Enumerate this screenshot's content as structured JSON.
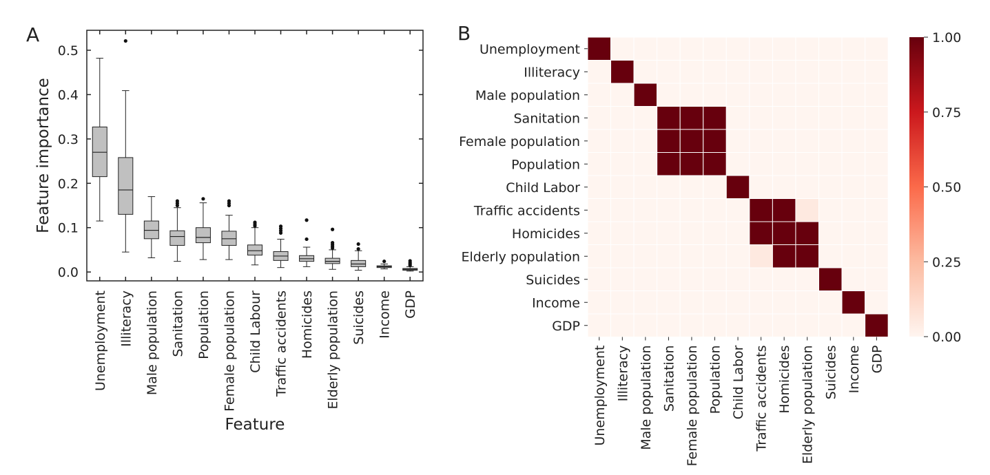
{
  "chart_data": [
    {
      "panel_label": "A",
      "type": "box",
      "xlabel": "Feature",
      "ylabel": "Feature importance",
      "ylim": [
        -0.02,
        0.545
      ],
      "yticks": [
        0.0,
        0.1,
        0.2,
        0.3,
        0.4,
        0.5
      ],
      "ytick_labels": [
        "0.0",
        "0.1",
        "0.2",
        "0.3",
        "0.4",
        "0.5"
      ],
      "grid": false,
      "box_color": "#c0c0c0",
      "categories": [
        "Unemployment",
        "Illiteracy",
        "Male population",
        "Sanitation",
        "Population",
        "Female population",
        "Child Labour",
        "Traffic accidents",
        "Homicides",
        "Elderly population",
        "Suicides",
        "Income",
        "GDP"
      ],
      "boxes": [
        {
          "whislo": 0.115,
          "q1": 0.215,
          "med": 0.27,
          "q3": 0.327,
          "whishi": 0.482,
          "fliers": []
        },
        {
          "whislo": 0.045,
          "q1": 0.13,
          "med": 0.185,
          "q3": 0.258,
          "whishi": 0.409,
          "fliers": [
            0.521
          ]
        },
        {
          "whislo": 0.032,
          "q1": 0.075,
          "med": 0.094,
          "q3": 0.115,
          "whishi": 0.17,
          "fliers": []
        },
        {
          "whislo": 0.024,
          "q1": 0.06,
          "med": 0.08,
          "q3": 0.093,
          "whishi": 0.145,
          "fliers": [
            0.15,
            0.155,
            0.16
          ]
        },
        {
          "whislo": 0.028,
          "q1": 0.066,
          "med": 0.078,
          "q3": 0.1,
          "whishi": 0.156,
          "fliers": [
            0.165
          ]
        },
        {
          "whislo": 0.028,
          "q1": 0.06,
          "med": 0.075,
          "q3": 0.092,
          "whishi": 0.128,
          "fliers": [
            0.15,
            0.155,
            0.16
          ]
        },
        {
          "whislo": 0.016,
          "q1": 0.038,
          "med": 0.048,
          "q3": 0.061,
          "whishi": 0.1,
          "fliers": [
            0.104,
            0.108,
            0.112
          ]
        },
        {
          "whislo": 0.01,
          "q1": 0.026,
          "med": 0.036,
          "q3": 0.046,
          "whishi": 0.074,
          "fliers": [
            0.088,
            0.093,
            0.098,
            0.103
          ]
        },
        {
          "whislo": 0.012,
          "q1": 0.024,
          "med": 0.03,
          "q3": 0.037,
          "whishi": 0.056,
          "fliers": [
            0.074,
            0.117
          ]
        },
        {
          "whislo": 0.006,
          "q1": 0.019,
          "med": 0.024,
          "q3": 0.031,
          "whishi": 0.05,
          "fliers": [
            0.054,
            0.058,
            0.062,
            0.066,
            0.096
          ]
        },
        {
          "whislo": 0.004,
          "q1": 0.012,
          "med": 0.018,
          "q3": 0.026,
          "whishi": 0.048,
          "fliers": [
            0.052,
            0.063
          ]
        },
        {
          "whislo": 0.007,
          "q1": 0.01,
          "med": 0.012,
          "q3": 0.014,
          "whishi": 0.018,
          "fliers": [
            0.024
          ]
        },
        {
          "whislo": 0.002,
          "q1": 0.004,
          "med": 0.006,
          "q3": 0.008,
          "whishi": 0.012,
          "fliers": [
            0.015,
            0.018,
            0.021,
            0.025
          ]
        }
      ]
    },
    {
      "panel_label": "B",
      "type": "heatmap",
      "labels": [
        "Unemployment",
        "Illiteracy",
        "Male population",
        "Sanitation",
        "Female population",
        "Population",
        "Child Labor",
        "Traffic accidents",
        "Homicides",
        "Elderly population",
        "Suicides",
        "Income",
        "GDP"
      ],
      "x_labels": [
        "Unemployment",
        "Illiteracy",
        "Male population",
        "Sanitation",
        "Female population",
        "Population",
        "Child Labor",
        "Traffic accidents",
        "Homicides",
        "Elderly population",
        "Suicides",
        "Income",
        "GDP"
      ],
      "matrix": [
        [
          1,
          0,
          0,
          0,
          0,
          0,
          0,
          0,
          0,
          0,
          0,
          0,
          0
        ],
        [
          0,
          1,
          0,
          0,
          0,
          0,
          0,
          0,
          0,
          0,
          0,
          0,
          0
        ],
        [
          0,
          0,
          1,
          0,
          0,
          0,
          0,
          0,
          0,
          0,
          0,
          0,
          0
        ],
        [
          0,
          0,
          0,
          1,
          1,
          1,
          0,
          0,
          0,
          0,
          0,
          0,
          0
        ],
        [
          0,
          0,
          0,
          1,
          1,
          1,
          0,
          0,
          0,
          0,
          0,
          0,
          0
        ],
        [
          0,
          0,
          0,
          1,
          1,
          1,
          0,
          0,
          0,
          0,
          0,
          0,
          0
        ],
        [
          0,
          0,
          0,
          0,
          0,
          0,
          1,
          0,
          0,
          0,
          0,
          0,
          0
        ],
        [
          0,
          0,
          0,
          0,
          0,
          0,
          0,
          1,
          1,
          0.05,
          0,
          0,
          0
        ],
        [
          0,
          0,
          0,
          0,
          0,
          0,
          0,
          1,
          1,
          1,
          0,
          0,
          0
        ],
        [
          0,
          0,
          0,
          0,
          0,
          0,
          0,
          0.05,
          1,
          1,
          0,
          0,
          0
        ],
        [
          0,
          0,
          0,
          0,
          0,
          0,
          0,
          0,
          0,
          0,
          1,
          0,
          0
        ],
        [
          0,
          0,
          0,
          0,
          0,
          0,
          0,
          0,
          0,
          0,
          0,
          1,
          0
        ],
        [
          0,
          0,
          0,
          0,
          0,
          0,
          0,
          0,
          0,
          0,
          0,
          0,
          1
        ]
      ],
      "colormap": [
        "#fff5f0",
        "#fcbba1",
        "#fb6a4a",
        "#cb181d",
        "#67000d"
      ],
      "vmin": 0,
      "vmax": 1,
      "colorbar_ticks": [
        0.0,
        0.25,
        0.5,
        0.75,
        1.0
      ],
      "colorbar_tick_labels": [
        "0.00",
        "0.25",
        "0.50",
        "0.75",
        "1.00"
      ]
    }
  ]
}
